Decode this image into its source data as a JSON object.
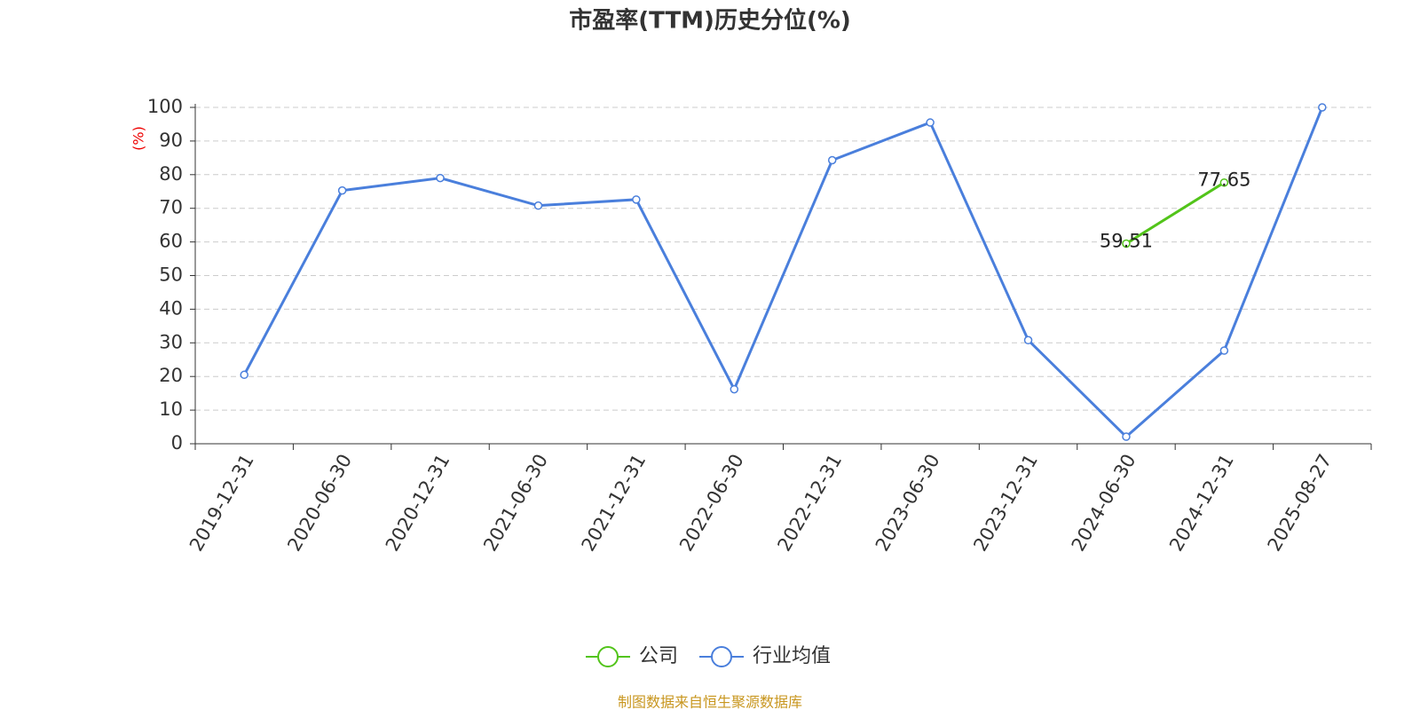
{
  "chart_data": {
    "type": "line",
    "title": "市盈率(TTM)历史分位(%)",
    "y_label": "(%)",
    "categories": [
      "2019-12-31",
      "2020-06-30",
      "2020-12-31",
      "2021-06-30",
      "2021-12-31",
      "2022-06-30",
      "2022-12-31",
      "2023-06-30",
      "2023-12-31",
      "2024-06-30",
      "2024-12-31",
      "2025-08-27"
    ],
    "series": [
      {
        "name": "公司",
        "color": "#52c41a",
        "show_labels": true,
        "values": [
          null,
          null,
          null,
          null,
          null,
          null,
          null,
          null,
          null,
          59.51,
          77.65,
          null
        ]
      },
      {
        "name": "行业均值",
        "color": "#4a7fdc",
        "show_labels": false,
        "values": [
          20.5,
          75.3,
          79.0,
          70.8,
          72.6,
          16.2,
          84.3,
          95.5,
          30.8,
          2.1,
          27.7,
          100
        ]
      }
    ],
    "ylim": [
      0,
      100
    ],
    "yticks": [
      0,
      10,
      20,
      30,
      40,
      50,
      60,
      70,
      80,
      90,
      100
    ],
    "grid": true,
    "legend": "bottom",
    "source": "制图数据来自恒生聚源数据库"
  }
}
